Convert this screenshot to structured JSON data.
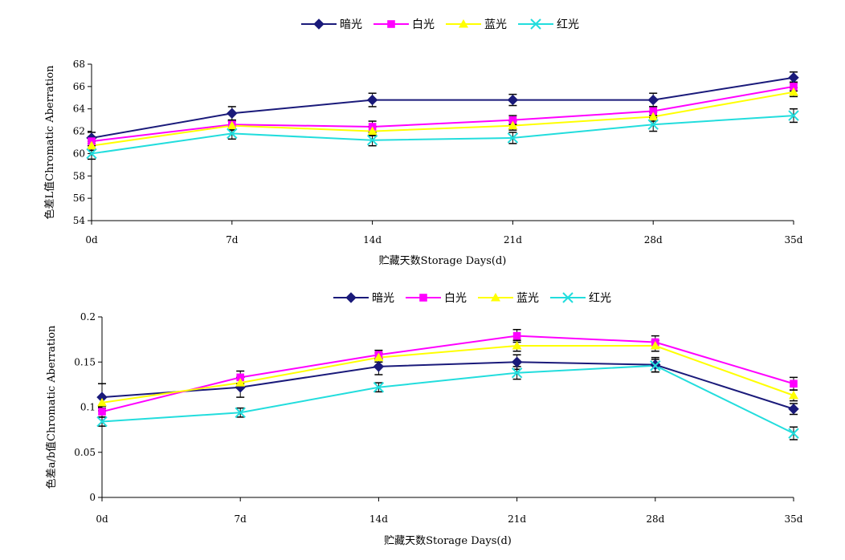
{
  "chart_data": [
    {
      "type": "line",
      "categories": [
        "0d",
        "7d",
        "14d",
        "21d",
        "28d",
        "35d"
      ],
      "xlabel": "贮藏天数Storage Days(d)",
      "ylabel": "色差L值Chromatic Aberration",
      "ylim": [
        54,
        68
      ],
      "yticks": [
        "54",
        "56",
        "58",
        "60",
        "62",
        "64",
        "66",
        "68"
      ],
      "legend_position": "top-center",
      "grid": false,
      "series": [
        {
          "name": "暗光",
          "color": "#1a1a7a",
          "marker": "diamond",
          "values": [
            61.4,
            63.6,
            64.8,
            64.8,
            64.8,
            66.8
          ],
          "errors": [
            0.5,
            0.6,
            0.6,
            0.5,
            0.6,
            0.5
          ]
        },
        {
          "name": "白光",
          "color": "#ff00ff",
          "marker": "square",
          "values": [
            61.1,
            62.6,
            62.4,
            63.0,
            63.8,
            66.0
          ],
          "errors": [
            0.4,
            0.4,
            0.5,
            0.4,
            0.4,
            0.4
          ]
        },
        {
          "name": "蓝光",
          "color": "#ffff00",
          "marker": "triangle",
          "values": [
            60.7,
            62.5,
            62.0,
            62.5,
            63.3,
            65.5
          ],
          "errors": [
            0.4,
            0.4,
            0.4,
            0.4,
            0.4,
            0.4
          ]
        },
        {
          "name": "红光",
          "color": "#22dddd",
          "marker": "x",
          "values": [
            60.0,
            61.8,
            61.2,
            61.4,
            62.6,
            63.4
          ],
          "errors": [
            0.5,
            0.5,
            0.5,
            0.5,
            0.6,
            0.6
          ]
        }
      ]
    },
    {
      "type": "line",
      "categories": [
        "0d",
        "7d",
        "14d",
        "21d",
        "28d",
        "35d"
      ],
      "xlabel": "贮藏天数Storage Days(d)",
      "ylabel": "色差a/b值Chromatic Aberration",
      "ylim": [
        0,
        0.2
      ],
      "yticks": [
        "0",
        "0.05",
        "0.1",
        "0.15",
        "0.2"
      ],
      "legend_position": "top-center",
      "grid": false,
      "series": [
        {
          "name": "暗光",
          "color": "#1a1a7a",
          "marker": "diamond",
          "values": [
            0.111,
            0.122,
            0.145,
            0.15,
            0.147,
            0.098
          ],
          "errors": [
            0.015,
            0.011,
            0.009,
            0.008,
            0.008,
            0.006
          ]
        },
        {
          "name": "白光",
          "color": "#ff00ff",
          "marker": "square",
          "values": [
            0.095,
            0.133,
            0.158,
            0.179,
            0.172,
            0.126
          ],
          "errors": [
            0.006,
            0.007,
            0.005,
            0.007,
            0.007,
            0.007
          ]
        },
        {
          "name": "蓝光",
          "color": "#ffff00",
          "marker": "triangle",
          "values": [
            0.105,
            0.127,
            0.155,
            0.168,
            0.168,
            0.113
          ],
          "errors": [
            0.006,
            0.006,
            0.005,
            0.006,
            0.006,
            0.006
          ]
        },
        {
          "name": "红光",
          "color": "#22dddd",
          "marker": "x",
          "values": [
            0.084,
            0.094,
            0.122,
            0.138,
            0.146,
            0.071
          ],
          "errors": [
            0.005,
            0.005,
            0.005,
            0.007,
            0.007,
            0.007
          ]
        }
      ]
    }
  ]
}
